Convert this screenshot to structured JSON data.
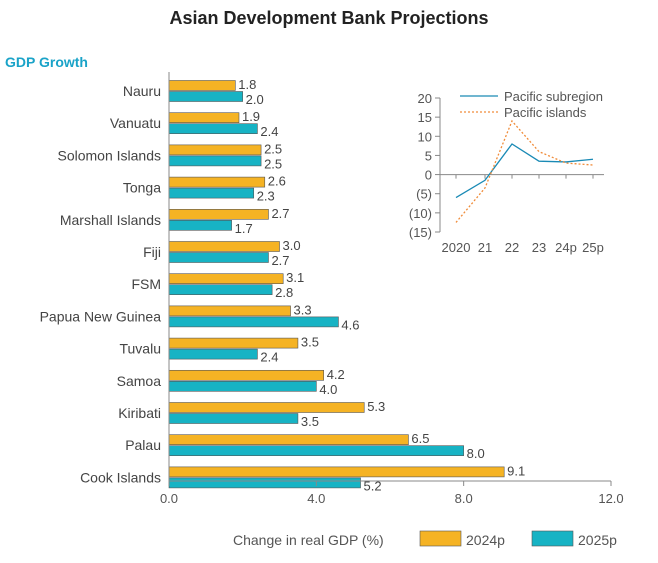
{
  "title": "Asian Development Bank Projections",
  "section_label": "GDP Growth",
  "x_axis_label": "Change in real GDP (%)",
  "colors": {
    "series_2024": "#f5b324",
    "series_2025": "#17b3c4",
    "axis": "#888888",
    "inset_line_1": "#1a8ab5",
    "inset_line_2": "#f08c3a"
  },
  "chart_data": [
    {
      "type": "bar",
      "orientation": "horizontal",
      "title": "GDP Growth",
      "xlabel": "Change in real GDP (%)",
      "xlim": [
        0,
        12
      ],
      "xticks": [
        0,
        4,
        8,
        12
      ],
      "xtick_labels": [
        "0.0",
        "4.0",
        "8.0",
        "12.0"
      ],
      "categories": [
        "Nauru",
        "Vanuatu",
        "Solomon Islands",
        "Tonga",
        "Marshall Islands",
        "Fiji",
        "FSM",
        "Papua New Guinea",
        "Tuvalu",
        "Samoa",
        "Kiribati",
        "Palau",
        "Cook Islands"
      ],
      "series": [
        {
          "name": "2024p",
          "values": [
            1.8,
            1.9,
            2.5,
            2.6,
            2.7,
            3.0,
            3.1,
            3.3,
            3.5,
            4.2,
            5.3,
            6.5,
            9.1
          ],
          "labels": [
            "1.8",
            "1.9",
            "2.5",
            "2.6",
            "2.7",
            "3.0",
            "3.1",
            "3.3",
            "3.5",
            "4.2",
            "5.3",
            "6.5",
            "9.1"
          ]
        },
        {
          "name": "2025p",
          "values": [
            2.0,
            2.4,
            2.5,
            2.3,
            1.7,
            2.7,
            2.8,
            4.6,
            2.4,
            4.0,
            3.5,
            8.0,
            5.2
          ],
          "labels": [
            "2.0",
            "2.4",
            "2.5",
            "2.3",
            "1.7",
            "2.7",
            "2.8",
            "4.6",
            "2.4",
            "4.0",
            "3.5",
            "8.0",
            "5.2"
          ]
        }
      ],
      "legend": [
        "2024p",
        "2025p"
      ]
    },
    {
      "type": "line",
      "title": "",
      "x": [
        "2020",
        "21",
        "22",
        "23",
        "24p",
        "25p"
      ],
      "ylim": [
        -15,
        20
      ],
      "yticks": [
        20,
        15,
        10,
        5,
        0,
        -5,
        -10,
        -15
      ],
      "ytick_labels": [
        "20",
        "15",
        "10",
        "5",
        "0",
        "(5)",
        "(10)",
        "(15)"
      ],
      "series": [
        {
          "name": "Pacific subregion",
          "style": "solid",
          "values": [
            -6.0,
            -1.5,
            8.0,
            3.5,
            3.3,
            4.0
          ]
        },
        {
          "name": "Pacific islands",
          "style": "dotted",
          "values": [
            -12.5,
            -3.5,
            14.0,
            6.0,
            3.0,
            2.5
          ]
        }
      ]
    }
  ]
}
